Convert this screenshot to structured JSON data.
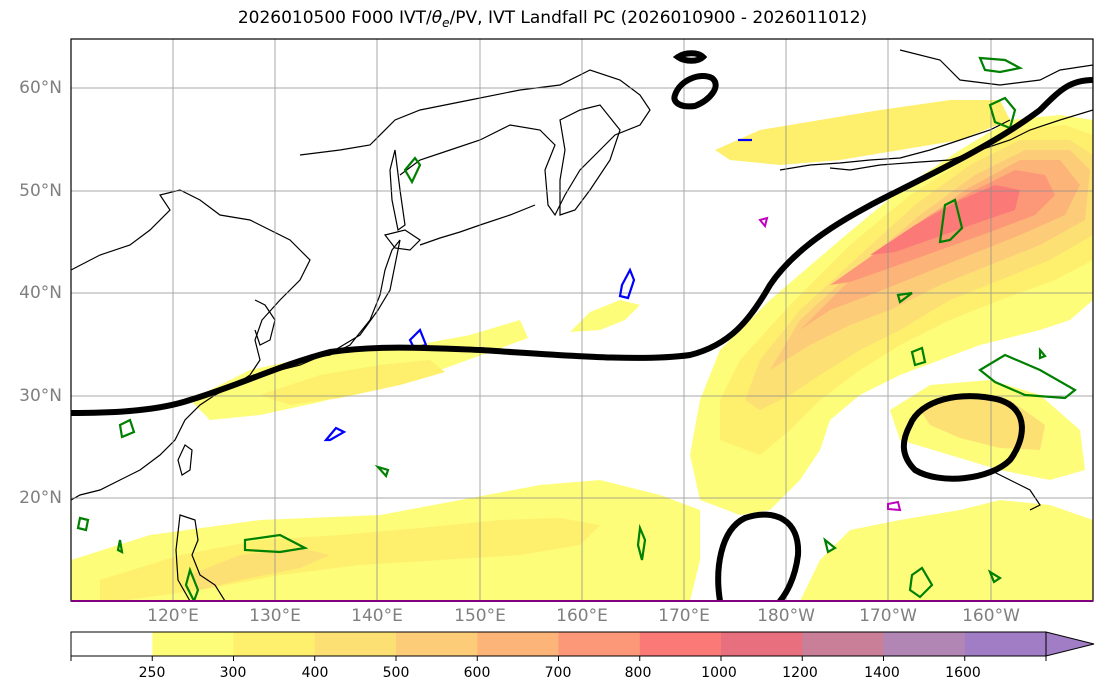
{
  "map": {
    "title_main": "2026010500 F000 IVT/",
    "title_theta": "θ",
    "title_sub": "e",
    "title_rest": "/PV, IVT Landfall PC (2026010900 - 2026011012)",
    "lat_labels": [
      "60°N",
      "50°N",
      "40°N",
      "30°N",
      "20°N"
    ],
    "lon_labels": [
      "120°E",
      "130°E",
      "140°E",
      "150°E",
      "160°E",
      "170°E",
      "180°W",
      "170°W",
      "160°W"
    ],
    "extent": {
      "lon_min": 110,
      "lon_max": 210,
      "lat_min": 10,
      "lat_max": 65
    },
    "gridlines": true
  },
  "colorbar": {
    "levels": [
      "250",
      "300",
      "400",
      "500",
      "600",
      "700",
      "800",
      "1000",
      "1200",
      "1400",
      "1600"
    ],
    "colors": [
      "#ffffff",
      "#fdfd7a",
      "#fef06c",
      "#fde074",
      "#fdcc78",
      "#fcb478",
      "#fc9878",
      "#fb7a78",
      "#e8707e",
      "#c97f98",
      "#b185b4",
      "#a07dc4"
    ],
    "extend": "max"
  },
  "legend_colors": {
    "pv_green": "#008000",
    "blue": "#0000ff",
    "magenta": "#c000c0",
    "landfall_pc": "#000000"
  }
}
